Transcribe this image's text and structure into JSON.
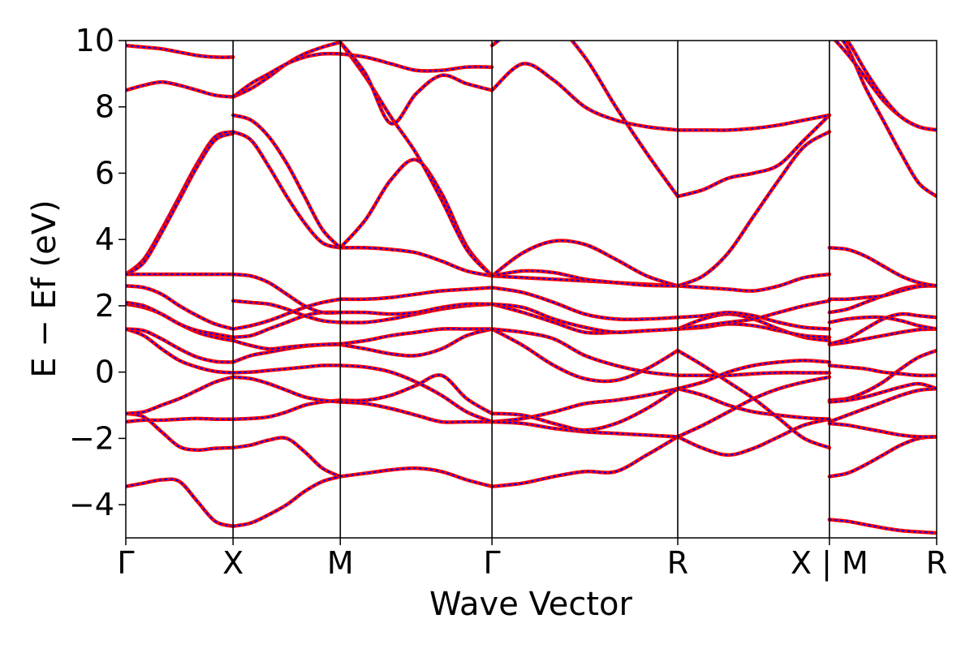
{
  "chart_data": {
    "type": "line",
    "title": "",
    "xlabel": "Wave Vector",
    "ylabel": "E − Ef (eV)",
    "ylim": [
      -5,
      10
    ],
    "yticks": [
      -4,
      -2,
      0,
      2,
      4,
      6,
      8,
      10
    ],
    "ytick_labels": [
      "−4",
      "−2",
      "0",
      "2",
      "4",
      "6",
      "8",
      "10"
    ],
    "high_symmetry_points": [
      {
        "label": "Γ",
        "k": 0.0
      },
      {
        "label": "X",
        "k": 0.5
      },
      {
        "label": "M",
        "k": 1.0
      },
      {
        "label": "Γ",
        "k": 1.7071
      },
      {
        "label": "R",
        "k": 2.5731
      },
      {
        "label": "X | M",
        "k": 3.2802
      },
      {
        "label": "R",
        "k": 3.7802
      }
    ],
    "colors": {
      "primary": "#ff0000",
      "overlay": "#0000ff"
    },
    "grid": false,
    "segments": [
      {
        "name": "Γ-X",
        "k_range": [
          0.0,
          0.5
        ],
        "bands": [
          [
            -3.45,
            -3.35,
            -3.25,
            -3.3,
            -3.9,
            -4.5,
            -4.65
          ],
          [
            -1.5,
            -1.45,
            -1.45,
            -1.42,
            -1.4,
            -1.42,
            -1.42
          ],
          [
            -1.25,
            -1.35,
            -1.8,
            -2.25,
            -2.35,
            -2.3,
            -2.28
          ],
          [
            -1.25,
            -1.2,
            -1.0,
            -0.8,
            -0.55,
            -0.3,
            -0.15
          ],
          [
            1.3,
            1.1,
            0.7,
            0.35,
            0.15,
            0.02,
            -0.02
          ],
          [
            1.3,
            1.25,
            1.0,
            0.7,
            0.45,
            0.32,
            0.3
          ],
          [
            2.05,
            1.95,
            1.75,
            1.45,
            1.2,
            1.05,
            0.95
          ],
          [
            2.1,
            2.0,
            1.75,
            1.45,
            1.25,
            1.15,
            1.05
          ],
          [
            2.6,
            2.55,
            2.35,
            2.0,
            1.7,
            1.45,
            1.3
          ],
          [
            2.95,
            3.4,
            4.3,
            5.3,
            6.3,
            7.1,
            7.25
          ],
          [
            2.95,
            3.3,
            4.2,
            5.2,
            6.2,
            7.0,
            7.2
          ],
          [
            2.95,
            2.95,
            2.95,
            2.95,
            2.95,
            2.95,
            2.95
          ],
          [
            8.5,
            8.65,
            8.75,
            8.65,
            8.5,
            8.35,
            8.3
          ],
          [
            9.85,
            9.8,
            9.75,
            9.65,
            9.55,
            9.5,
            9.5
          ]
        ]
      },
      {
        "name": "X-M",
        "k_range": [
          0.5,
          1.0
        ],
        "bands": [
          [
            -4.65,
            -4.55,
            -4.3,
            -4.0,
            -3.6,
            -3.3,
            -3.15
          ],
          [
            -2.28,
            -2.2,
            -2.05,
            -2.0,
            -2.4,
            -2.9,
            -3.15
          ],
          [
            -1.42,
            -1.4,
            -1.35,
            -1.2,
            -1.0,
            -0.9,
            -0.85
          ],
          [
            -0.15,
            -0.2,
            -0.35,
            -0.55,
            -0.75,
            -0.85,
            -0.9
          ],
          [
            -0.02,
            0.0,
            0.05,
            0.1,
            0.15,
            0.2,
            0.2
          ],
          [
            0.3,
            0.5,
            0.6,
            0.7,
            0.78,
            0.82,
            0.83
          ],
          [
            0.95,
            0.8,
            0.7,
            0.75,
            0.8,
            0.83,
            0.85
          ],
          [
            1.05,
            1.1,
            1.3,
            1.5,
            1.7,
            1.8,
            1.8
          ],
          [
            1.3,
            1.4,
            1.55,
            1.75,
            1.95,
            2.1,
            2.2
          ],
          [
            2.15,
            2.1,
            2.05,
            1.9,
            1.7,
            1.55,
            1.5
          ],
          [
            2.95,
            2.9,
            2.7,
            2.35,
            2.0,
            1.8,
            1.8
          ],
          [
            7.25,
            7.0,
            6.2,
            5.3,
            4.5,
            3.9,
            3.75
          ],
          [
            7.75,
            7.6,
            7.1,
            6.3,
            5.3,
            4.3,
            3.75
          ],
          [
            8.3,
            8.55,
            8.9,
            9.3,
            9.6,
            9.8,
            9.95
          ],
          [
            8.3,
            8.7,
            9.0,
            9.3,
            9.5,
            9.6,
            9.6
          ]
        ]
      },
      {
        "name": "M-Γ",
        "k_range": [
          1.0,
          1.7071
        ],
        "bands": [
          [
            -3.15,
            -3.05,
            -2.95,
            -2.9,
            -3.0,
            -3.25,
            -3.45
          ],
          [
            -0.85,
            -0.85,
            -0.7,
            -0.4,
            -0.1,
            -0.8,
            -1.25
          ],
          [
            -0.9,
            -0.95,
            -1.1,
            -1.3,
            -1.5,
            -1.5,
            -1.5
          ],
          [
            0.2,
            0.15,
            0.0,
            -0.3,
            -0.7,
            -1.2,
            -1.5
          ],
          [
            0.83,
            0.7,
            0.55,
            0.5,
            0.7,
            1.1,
            1.3
          ],
          [
            0.85,
            0.95,
            1.1,
            1.2,
            1.3,
            1.3,
            1.3
          ],
          [
            1.5,
            1.5,
            1.6,
            1.75,
            1.9,
            2.0,
            2.05
          ],
          [
            1.8,
            1.8,
            1.75,
            1.8,
            1.95,
            2.05,
            2.05
          ],
          [
            2.2,
            2.2,
            2.25,
            2.35,
            2.45,
            2.5,
            2.55
          ],
          [
            3.75,
            3.75,
            3.7,
            3.6,
            3.35,
            3.05,
            2.9
          ],
          [
            3.75,
            4.6,
            5.8,
            6.4,
            5.4,
            3.8,
            2.9
          ],
          [
            9.95,
            8.9,
            7.7,
            6.6,
            5.2,
            3.7,
            2.9
          ],
          [
            9.6,
            9.5,
            9.3,
            9.1,
            9.1,
            9.2,
            9.2
          ],
          [
            9.95,
            9.0,
            7.5,
            8.4,
            8.95,
            8.7,
            8.5
          ]
        ]
      },
      {
        "name": "Γ-R",
        "k_range": [
          1.7071,
          2.5731
        ],
        "bands": [
          [
            -3.45,
            -3.35,
            -3.15,
            -3.0,
            -3.0,
            -2.5,
            -1.95
          ],
          [
            -1.5,
            -1.4,
            -1.2,
            -0.95,
            -0.85,
            -0.7,
            -0.5
          ],
          [
            -1.5,
            -1.55,
            -1.7,
            -1.8,
            -1.85,
            -1.9,
            -1.95
          ],
          [
            -1.25,
            -1.3,
            -1.55,
            -1.75,
            -1.55,
            -1.1,
            -0.5
          ],
          [
            1.3,
            0.8,
            0.2,
            -0.2,
            -0.25,
            0.1,
            0.65
          ],
          [
            1.3,
            1.2,
            1.0,
            0.5,
            0.2,
            0.0,
            -0.1
          ],
          [
            2.05,
            1.8,
            1.5,
            1.2,
            1.2,
            1.25,
            1.3
          ],
          [
            2.05,
            1.95,
            1.6,
            1.35,
            1.2,
            1.25,
            1.3
          ],
          [
            2.55,
            2.4,
            2.1,
            1.75,
            1.6,
            1.6,
            1.65
          ],
          [
            2.9,
            2.85,
            2.8,
            2.75,
            2.7,
            2.65,
            2.6
          ],
          [
            2.9,
            3.6,
            3.95,
            3.85,
            3.4,
            2.9,
            2.6
          ],
          [
            2.9,
            3.05,
            3.0,
            2.8,
            2.7,
            2.62,
            2.6
          ],
          [
            8.5,
            9.3,
            8.8,
            8.0,
            7.6,
            7.4,
            7.3
          ],
          [
            9.85,
            10.5,
            10.5,
            9.5,
            8.0,
            6.6,
            5.3
          ]
        ]
      },
      {
        "name": "R-X",
        "k_range": [
          2.5731,
          3.2802
        ],
        "bands": [
          [
            -1.95,
            -2.3,
            -2.5,
            -2.3,
            -1.95,
            -1.6,
            -1.42
          ],
          [
            -0.5,
            -0.7,
            -1.0,
            -1.2,
            -1.3,
            -1.38,
            -1.42
          ],
          [
            -1.95,
            -1.6,
            -1.2,
            -0.8,
            -0.5,
            -0.3,
            -0.15
          ],
          [
            0.65,
            0.2,
            -0.3,
            -0.8,
            -1.4,
            -2.0,
            -2.28
          ],
          [
            -0.1,
            -0.1,
            -0.1,
            -0.05,
            -0.02,
            -0.02,
            -0.02
          ],
          [
            -0.5,
            -0.3,
            0.0,
            0.2,
            0.3,
            0.35,
            0.3
          ],
          [
            1.3,
            1.6,
            1.75,
            1.6,
            1.3,
            1.05,
            0.95
          ],
          [
            1.3,
            1.35,
            1.45,
            1.4,
            1.25,
            1.1,
            1.05
          ],
          [
            1.65,
            1.7,
            1.8,
            1.7,
            1.5,
            1.35,
            1.3
          ],
          [
            2.6,
            2.55,
            2.5,
            2.45,
            2.6,
            2.85,
            2.95
          ],
          [
            2.6,
            2.9,
            3.6,
            4.7,
            5.8,
            6.8,
            7.25
          ],
          [
            1.3,
            1.4,
            1.5,
            1.6,
            1.8,
            2.0,
            2.15
          ],
          [
            5.3,
            5.5,
            5.85,
            6.0,
            6.25,
            7.0,
            7.75
          ],
          [
            7.3,
            7.3,
            7.3,
            7.35,
            7.45,
            7.6,
            7.75
          ]
        ]
      },
      {
        "name": "M-R",
        "k_range": [
          3.2802,
          3.7802
        ],
        "bands": [
          [
            -4.45,
            -4.5,
            -4.6,
            -4.7,
            -4.78,
            -4.82,
            -4.85
          ],
          [
            -3.15,
            -3.05,
            -2.8,
            -2.5,
            -2.2,
            -2.0,
            -1.95
          ],
          [
            -1.5,
            -1.3,
            -1.1,
            -0.9,
            -0.7,
            -0.55,
            -0.5
          ],
          [
            -1.55,
            -1.6,
            -1.7,
            -1.8,
            -1.9,
            -1.95,
            -1.95
          ],
          [
            -0.85,
            -0.8,
            -0.6,
            -0.3,
            0.1,
            0.45,
            0.65
          ],
          [
            -0.9,
            -0.85,
            -0.75,
            -0.6,
            -0.45,
            -0.35,
            -0.5
          ],
          [
            0.2,
            0.15,
            0.1,
            0.0,
            -0.05,
            -0.1,
            -0.1
          ],
          [
            0.83,
            0.9,
            1.0,
            1.1,
            1.2,
            1.28,
            1.3
          ],
          [
            0.85,
            1.0,
            1.3,
            1.6,
            1.75,
            1.7,
            1.65
          ],
          [
            1.5,
            1.6,
            1.65,
            1.65,
            1.55,
            1.4,
            1.3
          ],
          [
            1.8,
            1.9,
            2.1,
            2.3,
            2.5,
            2.6,
            2.6
          ],
          [
            2.2,
            2.2,
            2.25,
            2.3,
            2.45,
            2.58,
            2.6
          ],
          [
            3.75,
            3.7,
            3.5,
            3.2,
            2.9,
            2.7,
            2.6
          ],
          [
            10.5,
            9.8,
            8.6,
            7.6,
            6.6,
            5.7,
            5.3
          ],
          [
            10.2,
            9.6,
            8.9,
            8.2,
            7.7,
            7.4,
            7.3
          ],
          [
            10.5,
            10.0,
            9.1,
            8.3,
            7.7,
            7.4,
            7.3
          ]
        ]
      }
    ]
  }
}
